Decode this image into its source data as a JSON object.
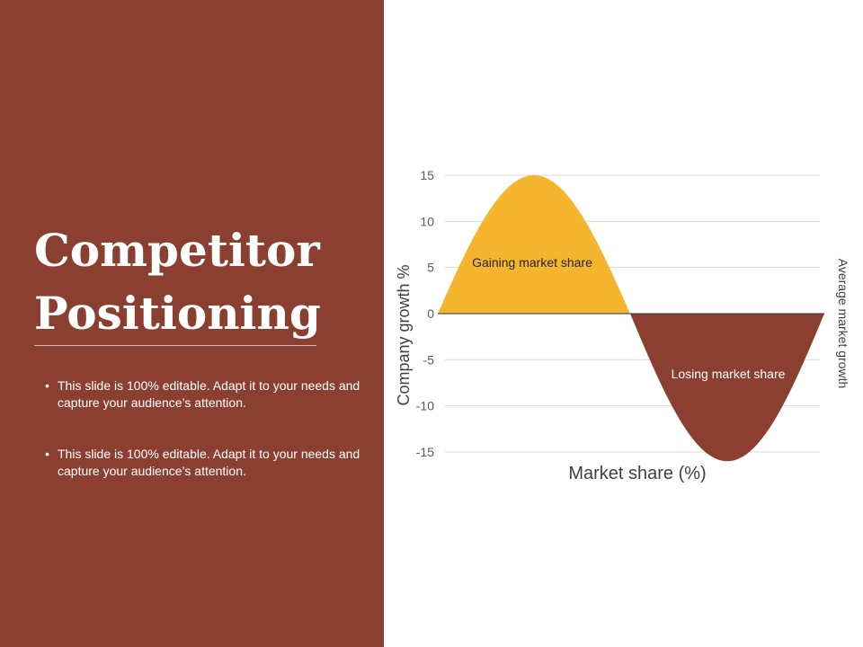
{
  "slide": {
    "title_line1": "Competitor",
    "title_line2": "Positioning",
    "bullets": [
      "This slide is 100% editable. Adapt it to your needs and capture your audience’s attention.",
      "This slide is 100% editable. Adapt it to your needs and capture your audience’s attention."
    ],
    "bullet_symbol": "•"
  },
  "colors": {
    "panel": "#8a3f31",
    "gain": "#f5b52f",
    "loss": "#8a3f31"
  },
  "chart_data": {
    "type": "area",
    "title": "",
    "xlabel": "Market share (%)",
    "ylabel": "Company growth %",
    "y2label": "Average market growth",
    "ylim": [
      -15,
      15
    ],
    "yticks": [
      "15",
      "10",
      "5",
      "0",
      "-5",
      "-10",
      "-15"
    ],
    "grid": true,
    "series": [
      {
        "label": "Gaining market share",
        "peak": 15
      },
      {
        "label": "Losing market share",
        "peak": -16
      }
    ]
  }
}
